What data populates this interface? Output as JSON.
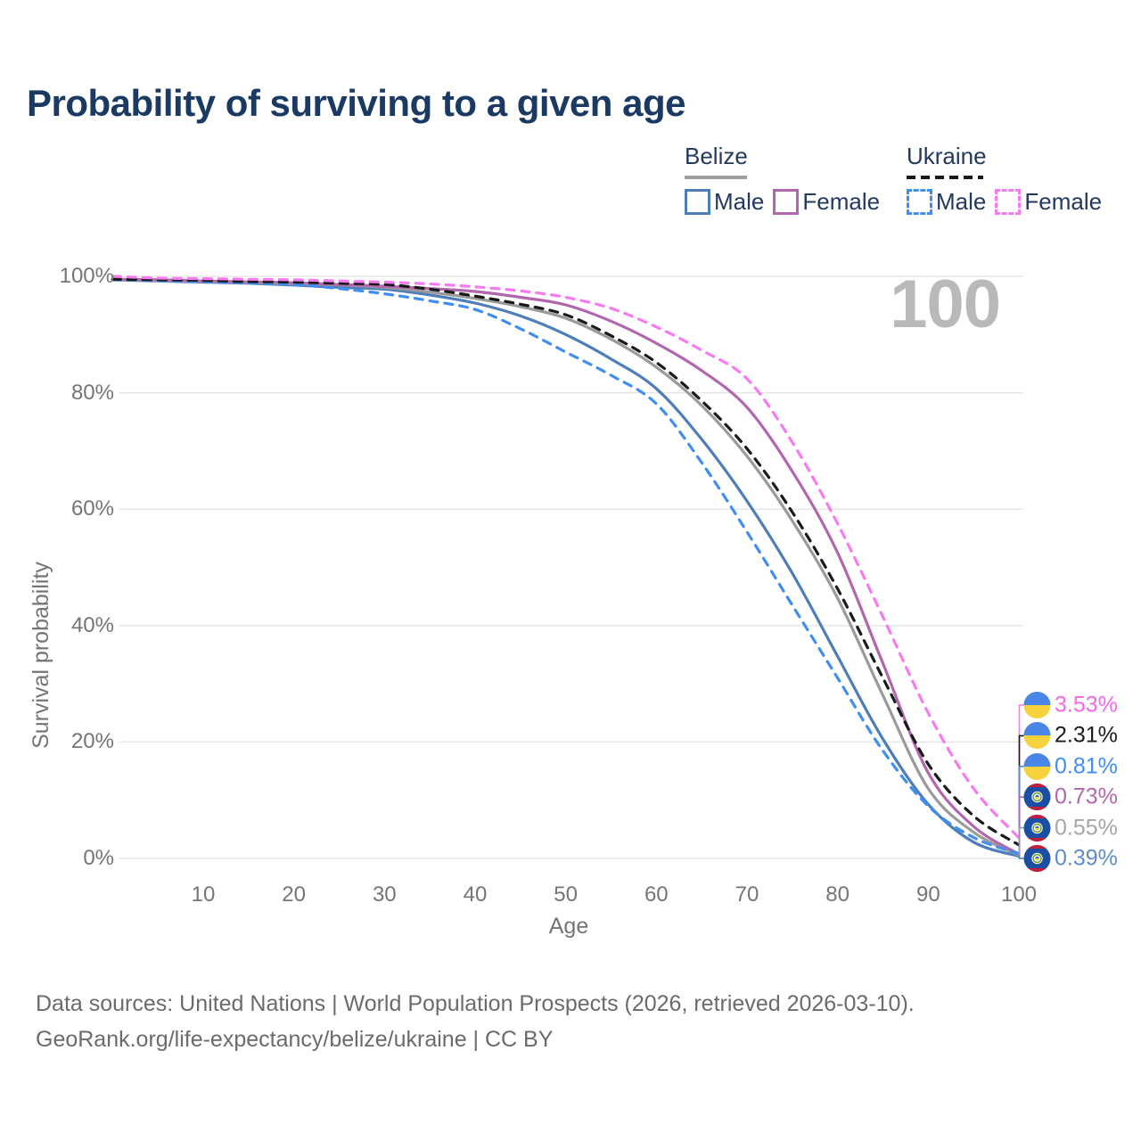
{
  "title": "Probability of surviving to a given age",
  "watermark": "100",
  "legend": {
    "groups": [
      {
        "country": "Belize",
        "rule_style": "solid",
        "rule_color": "#9e9e9e",
        "items": [
          {
            "label": "Male",
            "color": "#4d7eba",
            "dashed": false
          },
          {
            "label": "Female",
            "color": "#b266ae",
            "dashed": false
          }
        ]
      },
      {
        "country": "Ukraine",
        "rule_style": "dashed",
        "rule_color": "#1a1a1a",
        "items": [
          {
            "label": "Male",
            "color": "#3f8ef4",
            "dashed": true
          },
          {
            "label": "Female",
            "color": "#f97af0",
            "dashed": true
          }
        ]
      }
    ]
  },
  "chart_data": {
    "type": "line",
    "title": "Probability of surviving to a given age",
    "xlabel": "Age",
    "ylabel": "Survival probability",
    "xlim": [
      0,
      100
    ],
    "ylim": [
      0,
      100
    ],
    "grid": "horizontal",
    "x_ticks": [
      10,
      20,
      30,
      40,
      50,
      60,
      70,
      80,
      90,
      100
    ],
    "y_ticks": [
      {
        "value": 0,
        "label": "0%"
      },
      {
        "value": 20,
        "label": "20%"
      },
      {
        "value": 40,
        "label": "40%"
      },
      {
        "value": 60,
        "label": "60%"
      },
      {
        "value": 80,
        "label": "80%"
      },
      {
        "value": 100,
        "label": "100%"
      }
    ],
    "x": [
      0,
      5,
      10,
      15,
      20,
      25,
      30,
      35,
      40,
      45,
      50,
      55,
      60,
      65,
      70,
      75,
      80,
      85,
      90,
      95,
      100
    ],
    "series": [
      {
        "name": "Ukraine Female",
        "country": "Ukraine",
        "sex": "Female",
        "color": "#f97af0",
        "label_color": "#f866ea",
        "dashed": true,
        "flag": "ukraine",
        "end_label": "3.53%",
        "values": [
          100,
          99.7,
          99.6,
          99.5,
          99.4,
          99.2,
          99.0,
          98.7,
          98.2,
          97.5,
          96.4,
          94.5,
          91.3,
          87.3,
          82.4,
          71.5,
          57.5,
          41.5,
          25.0,
          12.0,
          3.53
        ]
      },
      {
        "name": "Ukraine",
        "country": "Ukraine",
        "sex": "Both",
        "color": "#1a1a1a",
        "label_color": "#1b1b1b",
        "dashed": true,
        "flag": "ukraine",
        "end_label": "2.31%",
        "values": [
          99.5,
          99.4,
          99.3,
          99.1,
          99.0,
          98.8,
          98.6,
          97.8,
          96.6,
          95.2,
          93.4,
          89.8,
          85.2,
          78.6,
          70.4,
          59.5,
          46.3,
          31.0,
          16.2,
          7.3,
          2.31
        ]
      },
      {
        "name": "Ukraine Male",
        "country": "Ukraine",
        "sex": "Male",
        "color": "#3f8ef4",
        "label_color": "#3f8ef4",
        "dashed": true,
        "flag": "ukraine",
        "end_label": "0.81%",
        "values": [
          99.4,
          99.3,
          99.1,
          98.9,
          98.6,
          97.9,
          97.0,
          95.8,
          94.3,
          91.0,
          87.0,
          83.0,
          78.1,
          68.0,
          56.1,
          43.5,
          31.0,
          18.5,
          9.0,
          3.6,
          0.81
        ]
      },
      {
        "name": "Belize Female",
        "country": "Belize",
        "sex": "Female",
        "color": "#b266ae",
        "label_color": "#b266ae",
        "dashed": false,
        "flag": "belize",
        "end_label": "0.73%",
        "values": [
          99.5,
          99.4,
          99.2,
          99.05,
          98.9,
          98.6,
          98.3,
          97.9,
          97.4,
          96.4,
          95.1,
          92.3,
          88.5,
          83.8,
          77.5,
          66.5,
          52.5,
          33.5,
          14.7,
          5.5,
          0.73
        ]
      },
      {
        "name": "Belize",
        "country": "Belize",
        "sex": "Both",
        "color": "#9a9a9a",
        "label_color": "#a6a6a6",
        "dashed": false,
        "flag": "belize",
        "end_label": "0.55%",
        "values": [
          99.4,
          99.3,
          99.1,
          98.9,
          98.7,
          98.5,
          98.1,
          97.3,
          96.2,
          94.8,
          92.8,
          89.2,
          84.4,
          77.8,
          69.1,
          58.0,
          44.7,
          28.0,
          12.0,
          4.5,
          0.55
        ]
      },
      {
        "name": "Belize Male",
        "country": "Belize",
        "sex": "Male",
        "color": "#4d7eba",
        "label_color": "#5f8cc9",
        "dashed": false,
        "flag": "belize",
        "end_label": "0.39%",
        "values": [
          99.4,
          99.2,
          99.0,
          98.8,
          98.5,
          98.1,
          97.8,
          96.8,
          95.4,
          93.2,
          90.0,
          85.8,
          80.7,
          72.0,
          61.4,
          49.0,
          34.7,
          20.5,
          9.3,
          2.8,
          0.39
        ]
      }
    ],
    "legend_position": "top-right",
    "gridline_color": "#e7e7e7"
  },
  "flag_colors": {
    "ukraine": {
      "top": "#4a86e8",
      "bottom": "#f6d33c"
    },
    "belize": {
      "bg": "#1a4fa4",
      "stripe": "#c0203c",
      "center_bg": "#ffffff",
      "ring": "#6fa32e",
      "core": "#3a6fc0",
      "core2": "#f0cf3a"
    }
  },
  "footer": {
    "line1": "Data sources: United Nations | World Population Prospects (2026, retrieved 2026-03-10).",
    "line2": "GeoRank.org/life-expectancy/belize/ukraine | CC BY"
  }
}
